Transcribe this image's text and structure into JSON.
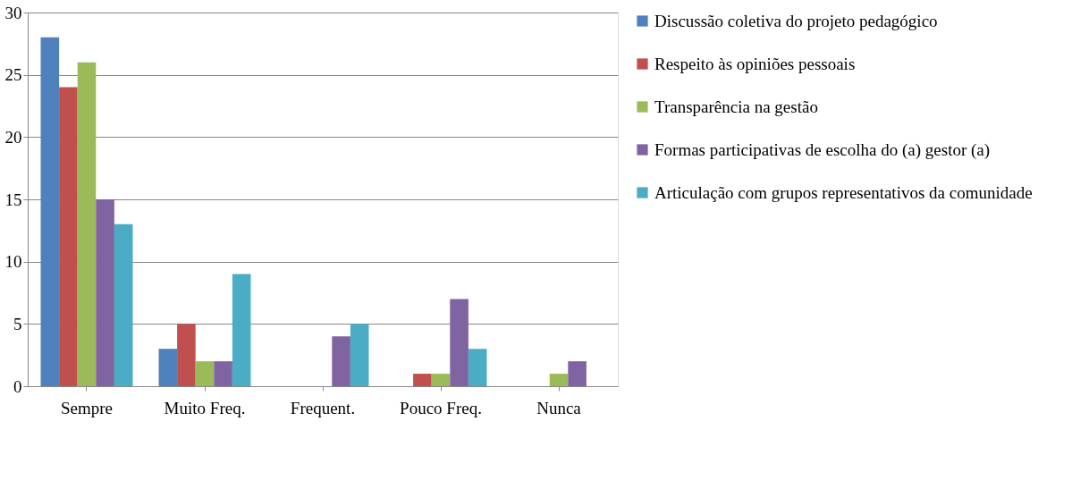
{
  "chart_data": {
    "type": "bar",
    "categories": [
      "Sempre",
      "Muito Freq.",
      "Frequent.",
      "Pouco Freq.",
      "Nunca"
    ],
    "series": [
      {
        "name": "Discussão coletiva do projeto pedagógico",
        "color": "#4f81bd",
        "values": [
          28,
          3,
          0,
          0,
          0
        ]
      },
      {
        "name": "Respeito às opiniões pessoais",
        "color": "#c0504d",
        "values": [
          24,
          5,
          0,
          1,
          0
        ]
      },
      {
        "name": "Transparência na gestão",
        "color": "#9bbb59",
        "values": [
          26,
          2,
          0,
          1,
          1
        ]
      },
      {
        "name": "Formas participativas de escolha do (a) gestor (a)",
        "color": "#8064a2",
        "values": [
          15,
          2,
          4,
          7,
          2
        ]
      },
      {
        "name": "Articulação com grupos representativos da comunidade",
        "color": "#4bacc6",
        "values": [
          13,
          9,
          5,
          3,
          0
        ]
      }
    ],
    "ylim": [
      0,
      30
    ],
    "yticks": [
      0,
      5,
      10,
      15,
      20,
      25,
      30
    ],
    "grid": "y",
    "legend": "right"
  }
}
